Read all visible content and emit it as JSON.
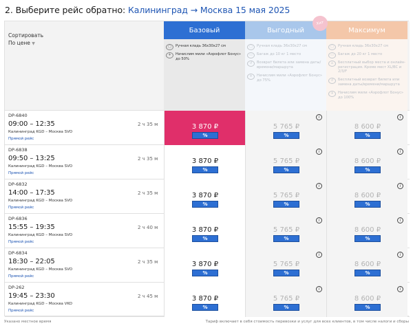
{
  "title": {
    "step": "2. Выберите рейс обратно:",
    "route": "Калининград → Москва 15 мая 2025"
  },
  "sort": {
    "label": "Сортировать",
    "value": "По цене",
    "chevron_icon": "chevron-down-icon"
  },
  "fares": [
    {
      "name": "Базовый",
      "head_color": "#2d6fd3",
      "features": [
        {
          "icon": "bag-icon",
          "text": "Ручная кладь 36x30x27 см"
        },
        {
          "icon": "miles-icon",
          "text": "Начислим мили «Аэрофлот Бонус» до 50%"
        }
      ]
    },
    {
      "name": "Выгодный",
      "head_color": "#a9c7eb",
      "badge": "Хит",
      "features": [
        {
          "icon": "bag-icon",
          "text": "Ручная кладь 36x30x27 см"
        },
        {
          "icon": "luggage-icon",
          "text": "Багаж до 10 кг 1 место"
        },
        {
          "icon": "refund-icon",
          "text": "Возврат билета или замена даты/времени/маршрута"
        },
        {
          "icon": "miles-icon",
          "text": "Начислим мили «Аэрофлот Бонус» до 75%"
        }
      ]
    },
    {
      "name": "Максимум",
      "head_color": "#f4c7a9",
      "features": [
        {
          "icon": "bag-icon",
          "text": "Ручная кладь 36x30x27 см"
        },
        {
          "icon": "luggage-icon",
          "text": "Багаж до 20 кг 1 место"
        },
        {
          "icon": "seat-icon",
          "text": "Бесплатный выбор места и онлайн-регистрация. Кроме мест XL/ВС и 2/3/F"
        },
        {
          "icon": "refund-icon",
          "text": "Бесплатный возврат билета или замена даты/времени/маршрута"
        },
        {
          "icon": "miles-icon",
          "text": "Начислим мили «Аэрофлот Бонус» до 100%"
        }
      ]
    }
  ],
  "flights": [
    {
      "number": "DP-6840",
      "times": "09:00 – 12:35",
      "route": "Калининград KGD – Москва SVO",
      "type": "Прямой рейс",
      "duration": "2 ч 35 м",
      "prices": [
        "3 870 ₽",
        "5 765 ₽",
        "8 600 ₽"
      ],
      "selected": true
    },
    {
      "number": "DP-6838",
      "times": "09:50 – 13:25",
      "route": "Калининград KGD – Москва SVO",
      "type": "Прямой рейс",
      "duration": "2 ч 35 м",
      "prices": [
        "3 870 ₽",
        "5 765 ₽",
        "8 600 ₽"
      ],
      "selected": false
    },
    {
      "number": "DP-6832",
      "times": "14:00 – 17:35",
      "route": "Калининград KGD – Москва SVO",
      "type": "Прямой рейс",
      "duration": "2 ч 35 м",
      "prices": [
        "3 870 ₽",
        "5 765 ₽",
        "8 600 ₽"
      ],
      "selected": false
    },
    {
      "number": "DP-6836",
      "times": "15:55 – 19:35",
      "route": "Калининград KGD – Москва SVO",
      "type": "Прямой рейс",
      "duration": "2 ч 40 м",
      "prices": [
        "3 870 ₽",
        "5 765 ₽",
        "8 600 ₽"
      ],
      "selected": false
    },
    {
      "number": "DP-6834",
      "times": "18:30 – 22:05",
      "route": "Калининград KGD – Москва SVO",
      "type": "Прямой рейс",
      "duration": "2 ч 35 м",
      "prices": [
        "3 870 ₽",
        "5 765 ₽",
        "8 600 ₽"
      ],
      "selected": false
    },
    {
      "number": "DP-262",
      "times": "19:45 – 23:30",
      "route": "Калининград KGD – Москва VKO",
      "type": "Прямой рейс",
      "duration": "2 ч 45 м",
      "prices": [
        "3 870 ₽",
        "5 765 ₽",
        "8 600 ₽"
      ],
      "selected": false
    }
  ],
  "discount_label": "%",
  "info_icon_label": "i",
  "selected_color": "#e02f6a",
  "footer": {
    "left": "Указано местное время",
    "right": "Тариф включает в себя стоимость перевозки и услуг для всех клиентов, в том числе налоги и сборы"
  }
}
